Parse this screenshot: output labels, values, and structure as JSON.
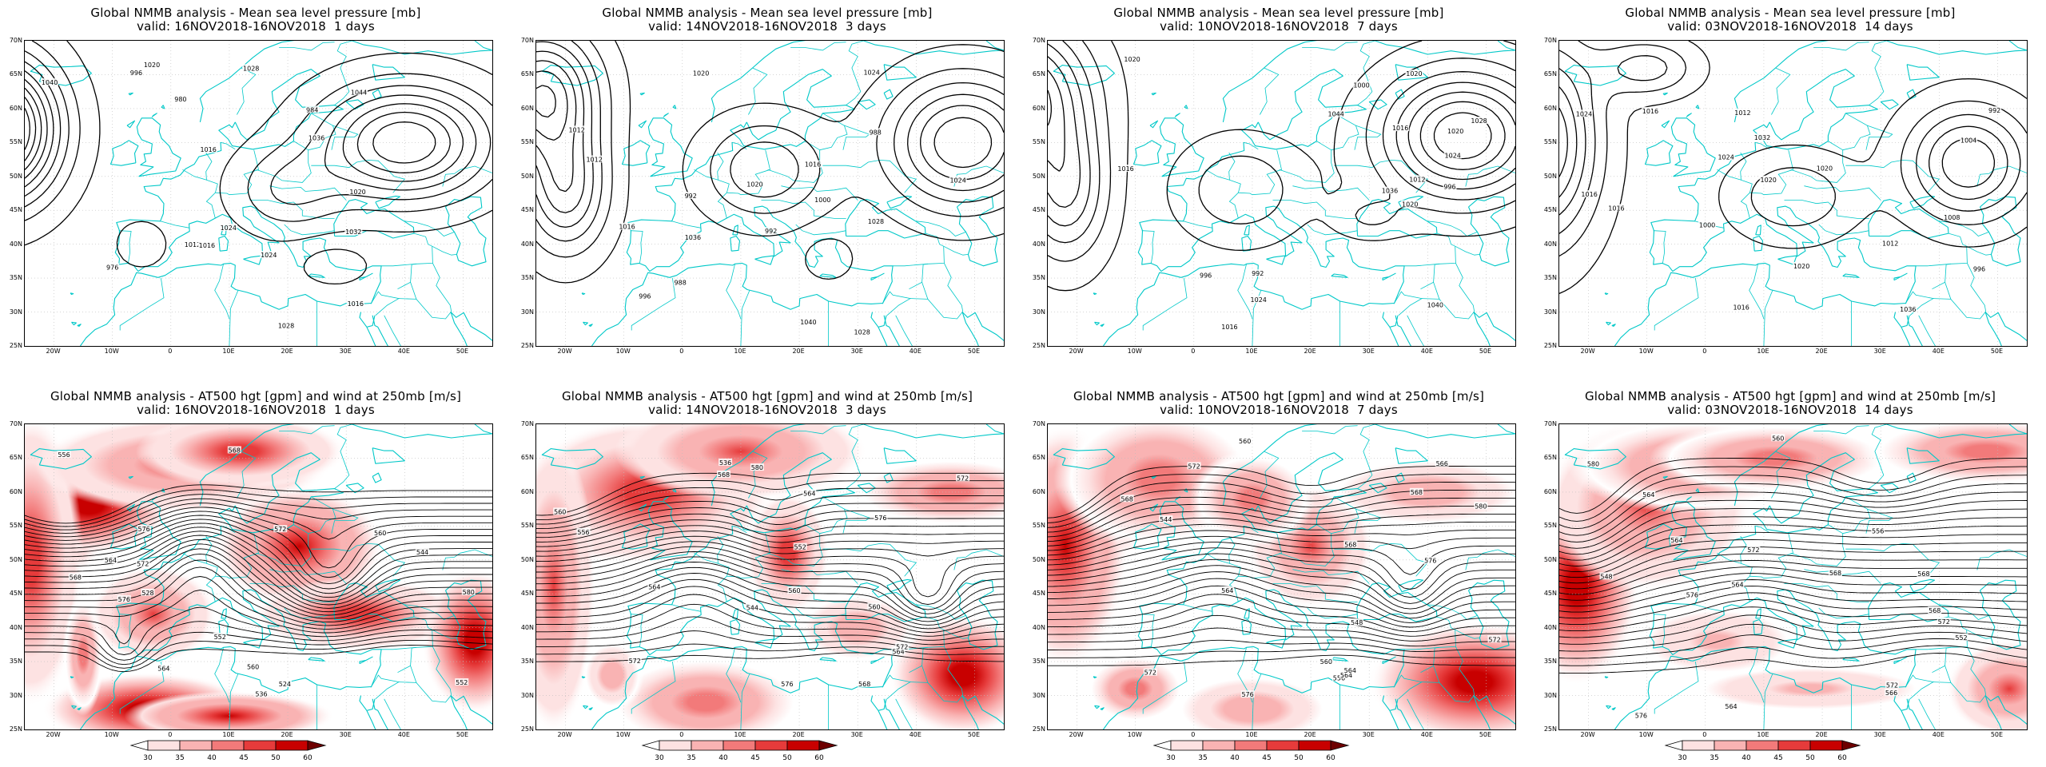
{
  "panels": [
    {
      "row": 0,
      "col": 0,
      "kind": "mslp",
      "title": "Global NMMB analysis - Mean sea level pressure [mb]",
      "subtitle": "valid: 16NOV2018-16NOV2018  1 days"
    },
    {
      "row": 0,
      "col": 1,
      "kind": "mslp",
      "title": "Global NMMB analysis - Mean sea level pressure [mb]",
      "subtitle": "valid: 14NOV2018-16NOV2018  3 days"
    },
    {
      "row": 0,
      "col": 2,
      "kind": "mslp",
      "title": "Global NMMB analysis - Mean sea level pressure [mb]",
      "subtitle": "valid: 10NOV2018-16NOV2018  7 days"
    },
    {
      "row": 0,
      "col": 3,
      "kind": "mslp",
      "title": "Global NMMB analysis - Mean sea level pressure [mb]",
      "subtitle": "valid: 03NOV2018-16NOV2018  14 days"
    },
    {
      "row": 1,
      "col": 0,
      "kind": "z500",
      "title": "Global NMMB analysis - AT500 hgt [gpm] and wind at 250mb [m/s]",
      "subtitle": "valid: 16NOV2018-16NOV2018  1 days"
    },
    {
      "row": 1,
      "col": 1,
      "kind": "z500",
      "title": "Global NMMB analysis - AT500 hgt [gpm] and wind at 250mb [m/s]",
      "subtitle": "valid: 14NOV2018-16NOV2018  3 days"
    },
    {
      "row": 1,
      "col": 2,
      "kind": "z500",
      "title": "Global NMMB analysis - AT500 hgt [gpm] and wind at 250mb [m/s]",
      "subtitle": "valid: 10NOV2018-16NOV2018  7 days"
    },
    {
      "row": 1,
      "col": 3,
      "kind": "z500",
      "title": "Global NMMB analysis - AT500 hgt [gpm] and wind at 250mb [m/s]",
      "subtitle": "valid: 03NOV2018-16NOV2018  14 days"
    }
  ],
  "map_extent": {
    "lon": [
      -25,
      55
    ],
    "lat": [
      25,
      70
    ]
  },
  "lat_ticks": [
    "70N",
    "65N",
    "60N",
    "55N",
    "50N",
    "45N",
    "40N",
    "35N",
    "30N",
    "25N"
  ],
  "lon_ticks": [
    "20W",
    "10W",
    "0",
    "10E",
    "20E",
    "30E",
    "40E",
    "50E"
  ],
  "colorbar": {
    "levels": [
      "30",
      "35",
      "40",
      "45",
      "50",
      "60"
    ],
    "colors": [
      "#ffffff",
      "#fde2e2",
      "#f9b3b3",
      "#f27a7a",
      "#e63b3b",
      "#c80000",
      "#6e0000"
    ]
  },
  "colors": {
    "coastline": "#00c8c8",
    "contour": "#000000",
    "grid": "#bdbdbd"
  },
  "mslp_labels": [
    [
      "996",
      "1016",
      "1020",
      "1024",
      "1028",
      "1032",
      "1036",
      "1040",
      "1044",
      "976",
      "980",
      "984",
      "1012",
      "1016",
      "1020",
      "1024",
      "1028",
      "1016"
    ],
    [
      "1012",
      "1016",
      "992",
      "988",
      "1020",
      "1024",
      "1028",
      "1036",
      "1040",
      "988",
      "992",
      "996",
      "1000",
      "1020",
      "1024",
      "1028",
      "1016",
      "1012"
    ],
    [
      "996",
      "1012",
      "1016",
      "1020",
      "1024",
      "1036",
      "1040",
      "1044",
      "992",
      "996",
      "1000",
      "1020",
      "1024",
      "1028",
      "1016",
      "1020",
      "1016",
      "1020"
    ],
    [
      "1012",
      "1016",
      "1020",
      "1024",
      "1032",
      "1036",
      "992",
      "996",
      "1000",
      "1004",
      "1008",
      "1012",
      "1016",
      "1020",
      "1024",
      "1016",
      "1016",
      "1020"
    ]
  ],
  "z500_labels": [
    [
      "524",
      "528",
      "536",
      "544",
      "552",
      "560",
      "568",
      "576",
      "564",
      "560",
      "556",
      "552",
      "568",
      "576",
      "572",
      "564",
      "580",
      "572"
    ],
    [
      "536",
      "544",
      "552",
      "560",
      "568",
      "564",
      "572",
      "576",
      "560",
      "556",
      "564",
      "560",
      "568",
      "572",
      "576",
      "580",
      "564",
      "572"
    ],
    [
      "544",
      "548",
      "556",
      "560",
      "564",
      "568",
      "572",
      "576",
      "566",
      "564",
      "560",
      "568",
      "572",
      "576",
      "580",
      "568",
      "572",
      "564"
    ],
    [
      "548",
      "552",
      "556",
      "560",
      "564",
      "568",
      "572",
      "576",
      "566",
      "564",
      "568",
      "572",
      "576",
      "580",
      "564",
      "572",
      "568",
      "564"
    ]
  ]
}
